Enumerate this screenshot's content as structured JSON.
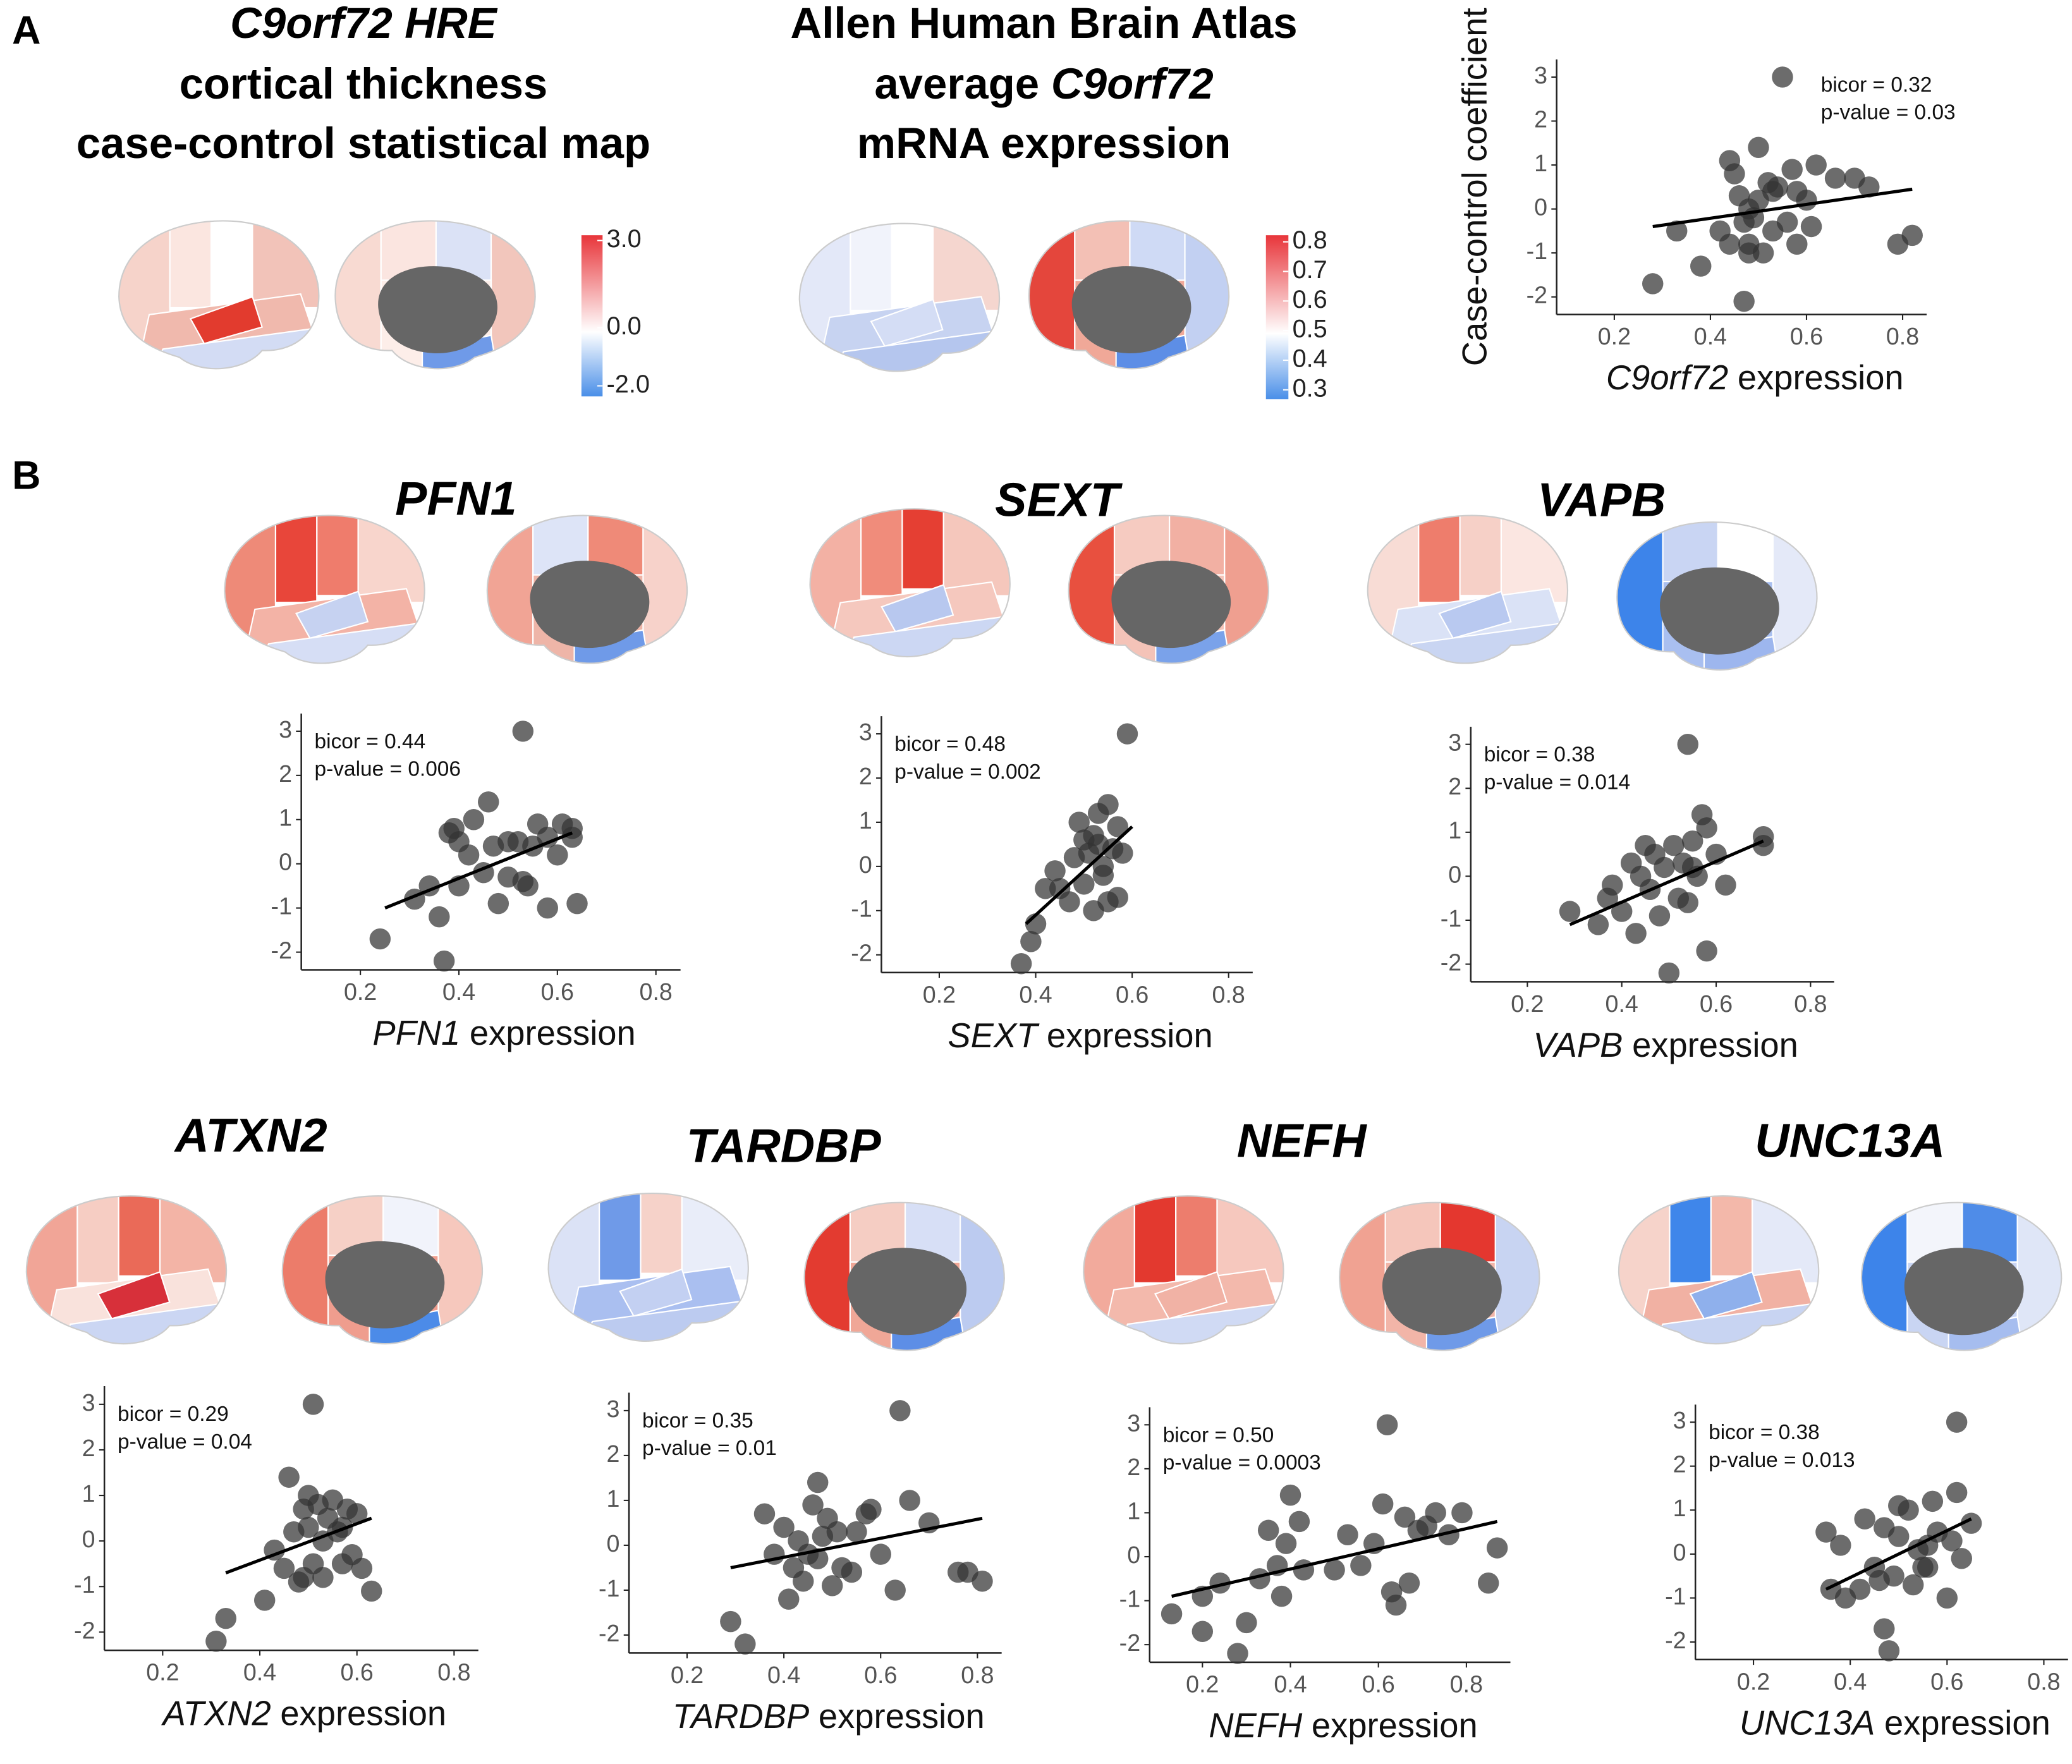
{
  "panel_labels": [
    "A",
    "B"
  ],
  "headings": [
    {
      "lines": [
        {
          "parts": [
            "C9orf72 HRE"
          ],
          "italic": [
            0
          ]
        },
        {
          "parts": [
            "cortical thickness"
          ],
          "italic": []
        },
        {
          "parts": [
            "case-control statistical map"
          ],
          "italic": []
        }
      ]
    },
    {
      "lines": [
        {
          "parts": [
            "Allen Human Brain Atlas"
          ],
          "italic": []
        },
        {
          "parts": [
            "average",
            "C9orf72"
          ],
          "italic": [
            1
          ]
        },
        {
          "parts": [
            "mRNA expression"
          ],
          "italic": []
        }
      ]
    }
  ],
  "colorbars": [
    {
      "lim": [
        -2,
        3
      ],
      "colors": [
        "#4a8fe8",
        "#ffffff",
        "#e8353a"
      ],
      "ticks": [
        {
          "value": 3,
          "label": "3.0"
        },
        {
          "value": 0,
          "label": "0.0"
        },
        {
          "value": -2,
          "label": "-2.0"
        }
      ]
    },
    {
      "lim": [
        0.3,
        0.8
      ],
      "colors": [
        "#4a8fe8",
        "#ffffff",
        "#e8353a"
      ],
      "ticks": [
        0.8,
        0.7,
        0.6,
        0.5,
        0.4,
        0.3
      ]
    }
  ],
  "chart_data": [
    {
      "type": "scatter",
      "ylabel": "Case-control coefficient",
      "xlabel": [
        "C9orf72",
        "expression"
      ],
      "annotations": [
        "bicor = 0.32",
        "p-value = 0.03"
      ],
      "color": "#333333",
      "x": [
        0.28,
        0.33,
        0.38,
        0.42,
        0.44,
        0.45,
        0.46,
        0.47,
        0.47,
        0.48,
        0.48,
        0.49,
        0.5,
        0.5,
        0.51,
        0.52,
        0.53,
        0.53,
        0.54,
        0.55,
        0.56,
        0.57,
        0.58,
        0.6,
        0.61,
        0.62,
        0.66,
        0.7,
        0.73,
        0.79,
        0.82,
        0.48,
        0.44,
        0.58
      ],
      "values": [
        -1.7,
        -0.5,
        -1.3,
        -0.5,
        1.1,
        0.8,
        0.3,
        -0.3,
        -2.1,
        0,
        -0.8,
        -0.2,
        1.4,
        0.2,
        -1,
        0.6,
        0.4,
        -0.5,
        0.5,
        3.0,
        -0.3,
        0.9,
        -0.8,
        0.2,
        -0.4,
        1.0,
        0.7,
        0.7,
        0.5,
        -0.8,
        -0.6,
        -1.0,
        -0.8,
        0.4
      ],
      "fit": {
        "x": [
          0.28,
          0.82
        ],
        "y": [
          -0.4,
          0.45
        ]
      },
      "xlim": [
        0.08,
        0.85
      ],
      "ylim": [
        -2.4,
        3.4
      ],
      "xticks": [
        0.2,
        0.4,
        0.6,
        0.8
      ],
      "yticks": [
        -2,
        -1,
        0,
        1,
        2,
        3
      ]
    },
    {
      "type": "scatter",
      "title": "PFN1",
      "xlabel": [
        "PFN1",
        "expression"
      ],
      "annotations": [
        "bicor = 0.44",
        "p-value = 0.006"
      ],
      "color": "#333333",
      "x": [
        0.24,
        0.31,
        0.34,
        0.36,
        0.37,
        0.38,
        0.39,
        0.4,
        0.4,
        0.42,
        0.43,
        0.45,
        0.46,
        0.47,
        0.48,
        0.5,
        0.5,
        0.52,
        0.53,
        0.53,
        0.54,
        0.55,
        0.56,
        0.58,
        0.58,
        0.6,
        0.61,
        0.63,
        0.64,
        0.63
      ],
      "values": [
        -1.7,
        -0.8,
        -0.5,
        -1.2,
        -2.2,
        0.7,
        0.8,
        0.5,
        -0.5,
        0.2,
        1.0,
        -0.2,
        1.4,
        0.4,
        -0.9,
        0.5,
        -0.3,
        0.5,
        -0.4,
        3.0,
        -0.5,
        0.4,
        0.9,
        -1.0,
        0.6,
        0.2,
        0.9,
        0.6,
        -0.9,
        0.8
      ],
      "fit": {
        "x": [
          0.25,
          0.63
        ],
        "y": [
          -1.0,
          0.7
        ]
      },
      "xlim": [
        0.08,
        0.85
      ],
      "ylim": [
        -2.4,
        3.4
      ],
      "xticks": [
        0.2,
        0.4,
        0.6,
        0.8
      ],
      "yticks": [
        -2,
        -1,
        0,
        1,
        2,
        3
      ]
    },
    {
      "type": "scatter",
      "title": "SEXT",
      "xlabel": [
        "SEXT",
        "expression"
      ],
      "annotations": [
        "bicor = 0.48",
        "p-value = 0.002"
      ],
      "color": "#333333",
      "x": [
        0.37,
        0.39,
        0.4,
        0.42,
        0.44,
        0.45,
        0.47,
        0.48,
        0.49,
        0.5,
        0.5,
        0.51,
        0.52,
        0.52,
        0.53,
        0.53,
        0.54,
        0.54,
        0.55,
        0.56,
        0.57,
        0.57,
        0.58,
        0.59,
        0.55
      ],
      "values": [
        -2.2,
        -1.7,
        -1.3,
        -0.5,
        -0.1,
        -0.5,
        -0.8,
        0.2,
        1.0,
        0.6,
        -0.4,
        0.3,
        0.7,
        -1.0,
        1.2,
        0.5,
        -0.2,
        0,
        1.4,
        0.4,
        -0.7,
        0.9,
        0.3,
        3.0,
        -0.8
      ],
      "fit": {
        "x": [
          0.38,
          0.6
        ],
        "y": [
          -1.3,
          0.9
        ]
      },
      "xlim": [
        0.08,
        0.85
      ],
      "ylim": [
        -2.4,
        3.4
      ],
      "xticks": [
        0.2,
        0.4,
        0.6,
        0.8
      ],
      "yticks": [
        -2,
        -1,
        0,
        1,
        2,
        3
      ]
    },
    {
      "type": "scatter",
      "title": "VAPB",
      "xlabel": [
        "VAPB",
        "expression"
      ],
      "annotations": [
        "bicor = 0.38",
        "p-value = 0.014"
      ],
      "color": "#333333",
      "x": [
        0.29,
        0.35,
        0.37,
        0.38,
        0.4,
        0.42,
        0.43,
        0.44,
        0.45,
        0.46,
        0.47,
        0.48,
        0.49,
        0.5,
        0.51,
        0.52,
        0.53,
        0.54,
        0.54,
        0.55,
        0.56,
        0.57,
        0.58,
        0.58,
        0.6,
        0.62,
        0.7,
        0.7,
        0.55
      ],
      "values": [
        -0.8,
        -1.1,
        -0.5,
        -0.2,
        -0.8,
        0.3,
        -1.3,
        0,
        0.7,
        -0.3,
        0.5,
        -0.9,
        0.2,
        -2.2,
        0.7,
        -0.5,
        0.3,
        3.0,
        -0.6,
        0.8,
        0,
        1.4,
        -1.7,
        1.1,
        0.5,
        -0.2,
        0.9,
        0.7,
        0.2
      ],
      "fit": {
        "x": [
          0.29,
          0.7
        ],
        "y": [
          -1.1,
          0.8
        ]
      },
      "xlim": [
        0.08,
        0.85
      ],
      "ylim": [
        -2.4,
        3.4
      ],
      "xticks": [
        0.2,
        0.4,
        0.6,
        0.8
      ],
      "yticks": [
        -2,
        -1,
        0,
        1,
        2,
        3
      ]
    },
    {
      "type": "scatter",
      "title": "ATXN2",
      "xlabel": [
        "ATXN2",
        "expression"
      ],
      "annotations": [
        "bicor =  0.29",
        "p-value = 0.04"
      ],
      "color": "#333333",
      "x": [
        0.31,
        0.33,
        0.41,
        0.43,
        0.45,
        0.46,
        0.47,
        0.48,
        0.49,
        0.49,
        0.5,
        0.5,
        0.51,
        0.51,
        0.52,
        0.53,
        0.53,
        0.54,
        0.55,
        0.56,
        0.57,
        0.58,
        0.59,
        0.6,
        0.61,
        0.63,
        0.57
      ],
      "values": [
        -2.2,
        -1.7,
        -1.3,
        -0.2,
        -0.6,
        1.4,
        0.2,
        -0.9,
        0.7,
        -0.8,
        1.0,
        0.3,
        3.0,
        -0.5,
        0.8,
        0,
        -0.8,
        0.5,
        0.9,
        0.2,
        -0.5,
        0.7,
        -0.3,
        0.6,
        -0.6,
        -1.1,
        0.3
      ],
      "fit": {
        "x": [
          0.33,
          0.63
        ],
        "y": [
          -0.7,
          0.5
        ]
      },
      "xlim": [
        0.08,
        0.85
      ],
      "ylim": [
        -2.4,
        3.4
      ],
      "xticks": [
        0.2,
        0.4,
        0.6,
        0.8
      ],
      "yticks": [
        -2,
        -1,
        0,
        1,
        2,
        3
      ]
    },
    {
      "type": "scatter",
      "title": "TARDBP",
      "xlabel": [
        "TARDBP",
        "expression"
      ],
      "annotations": [
        "bicor = 0.35",
        "p-value = 0.01"
      ],
      "color": "#333333",
      "x": [
        0.29,
        0.32,
        0.36,
        0.38,
        0.4,
        0.41,
        0.42,
        0.43,
        0.44,
        0.45,
        0.46,
        0.47,
        0.47,
        0.48,
        0.49,
        0.5,
        0.51,
        0.52,
        0.54,
        0.55,
        0.57,
        0.58,
        0.6,
        0.63,
        0.64,
        0.66,
        0.7,
        0.76,
        0.78,
        0.81
      ],
      "values": [
        -1.7,
        -2.2,
        0.7,
        -0.2,
        0.4,
        -1.2,
        -0.5,
        0.1,
        -0.8,
        -0.2,
        0.9,
        1.4,
        -0.3,
        0.2,
        0.6,
        -0.9,
        0.3,
        -0.5,
        -0.6,
        0.3,
        0.7,
        0.8,
        -0.2,
        -1.0,
        3.0,
        1.0,
        0.5,
        -0.6,
        -0.6,
        -0.8
      ],
      "fit": {
        "x": [
          0.29,
          0.81
        ],
        "y": [
          -0.5,
          0.6
        ]
      },
      "xlim": [
        0.08,
        0.85
      ],
      "ylim": [
        -2.4,
        3.4
      ],
      "xticks": [
        0.2,
        0.4,
        0.6,
        0.8
      ],
      "yticks": [
        -2,
        -1,
        0,
        1,
        2,
        3
      ]
    },
    {
      "type": "scatter",
      "title": "NEFH",
      "xlabel": [
        "NEFH",
        "expression"
      ],
      "annotations": [
        "bicor = 0.50",
        "p-value = 0.0003"
      ],
      "color": "#333333",
      "x": [
        0.13,
        0.2,
        0.2,
        0.24,
        0.28,
        0.3,
        0.33,
        0.35,
        0.37,
        0.38,
        0.39,
        0.4,
        0.42,
        0.43,
        0.5,
        0.53,
        0.56,
        0.59,
        0.61,
        0.62,
        0.63,
        0.64,
        0.66,
        0.67,
        0.69,
        0.71,
        0.73,
        0.76,
        0.79,
        0.85,
        0.87
      ],
      "values": [
        -1.3,
        -0.9,
        -1.7,
        -0.6,
        -2.2,
        -1.5,
        -0.5,
        0.6,
        -0.2,
        -0.9,
        0.3,
        1.4,
        0.8,
        -0.3,
        -0.3,
        0.5,
        -0.2,
        0.3,
        1.2,
        3.0,
        -0.8,
        -1.1,
        0.9,
        -0.6,
        0.6,
        0.7,
        1.0,
        0.5,
        1.0,
        -0.6,
        0.2
      ],
      "fit": {
        "x": [
          0.13,
          0.87
        ],
        "y": [
          -0.9,
          0.8
        ]
      },
      "xlim": [
        0.08,
        0.9
      ],
      "ylim": [
        -2.4,
        3.4
      ],
      "xticks": [
        0.2,
        0.4,
        0.6,
        0.8
      ],
      "yticks": [
        -2,
        -1,
        0,
        1,
        2,
        3
      ]
    },
    {
      "type": "scatter",
      "title": "UNC13A",
      "xlabel": [
        "UNC13A",
        "expression"
      ],
      "annotations": [
        "bicor = 0.38",
        "p-value = 0.013"
      ],
      "color": "#333333",
      "x": [
        0.35,
        0.36,
        0.38,
        0.39,
        0.42,
        0.43,
        0.45,
        0.46,
        0.47,
        0.47,
        0.48,
        0.49,
        0.5,
        0.5,
        0.52,
        0.53,
        0.54,
        0.55,
        0.56,
        0.57,
        0.58,
        0.6,
        0.61,
        0.62,
        0.62,
        0.63,
        0.65,
        0.56
      ],
      "values": [
        0.5,
        -0.8,
        0.2,
        -1.0,
        -0.8,
        0.8,
        -0.3,
        -0.6,
        0.6,
        -1.7,
        -2.2,
        -0.5,
        0.4,
        1.1,
        1.0,
        -0.7,
        0.1,
        -0.3,
        0.2,
        1.2,
        0.5,
        -1.0,
        0.3,
        1.4,
        3.0,
        -0.1,
        0.7,
        -0.3
      ],
      "fit": {
        "x": [
          0.35,
          0.65
        ],
        "y": [
          -0.8,
          0.8
        ]
      },
      "xlim": [
        0.08,
        0.85
      ],
      "ylim": [
        -2.4,
        3.4
      ],
      "xticks": [
        0.2,
        0.4,
        0.6,
        0.8
      ],
      "yticks": [
        -2,
        -1,
        0,
        1,
        2,
        3
      ]
    }
  ]
}
